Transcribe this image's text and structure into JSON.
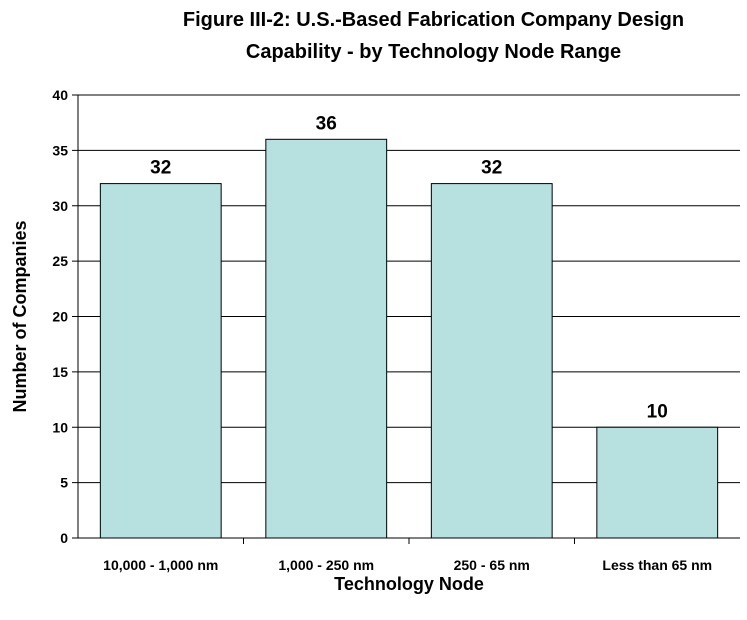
{
  "chart_data": {
    "type": "bar",
    "title_lines": [
      "Figure III-2: U.S.-Based Fabrication Company Design",
      "Capability - by Technology Node Range"
    ],
    "xlabel": "Technology Node",
    "ylabel": "Number of Companies",
    "categories": [
      "10,000 - 1,000 nm",
      "1,000 - 250 nm",
      "250 - 65 nm",
      "Less than 65 nm"
    ],
    "values": [
      32,
      36,
      32,
      10
    ],
    "data_labels": [
      "32",
      "36",
      "32",
      "10"
    ],
    "ylim": [
      0,
      40
    ],
    "yticks": [
      "0",
      "5",
      "10",
      "15",
      "20",
      "25",
      "30",
      "35",
      "40"
    ],
    "grid": true,
    "legend": "none",
    "bar_color": "#b7e0e0",
    "bar_edge_color": "#000000"
  }
}
